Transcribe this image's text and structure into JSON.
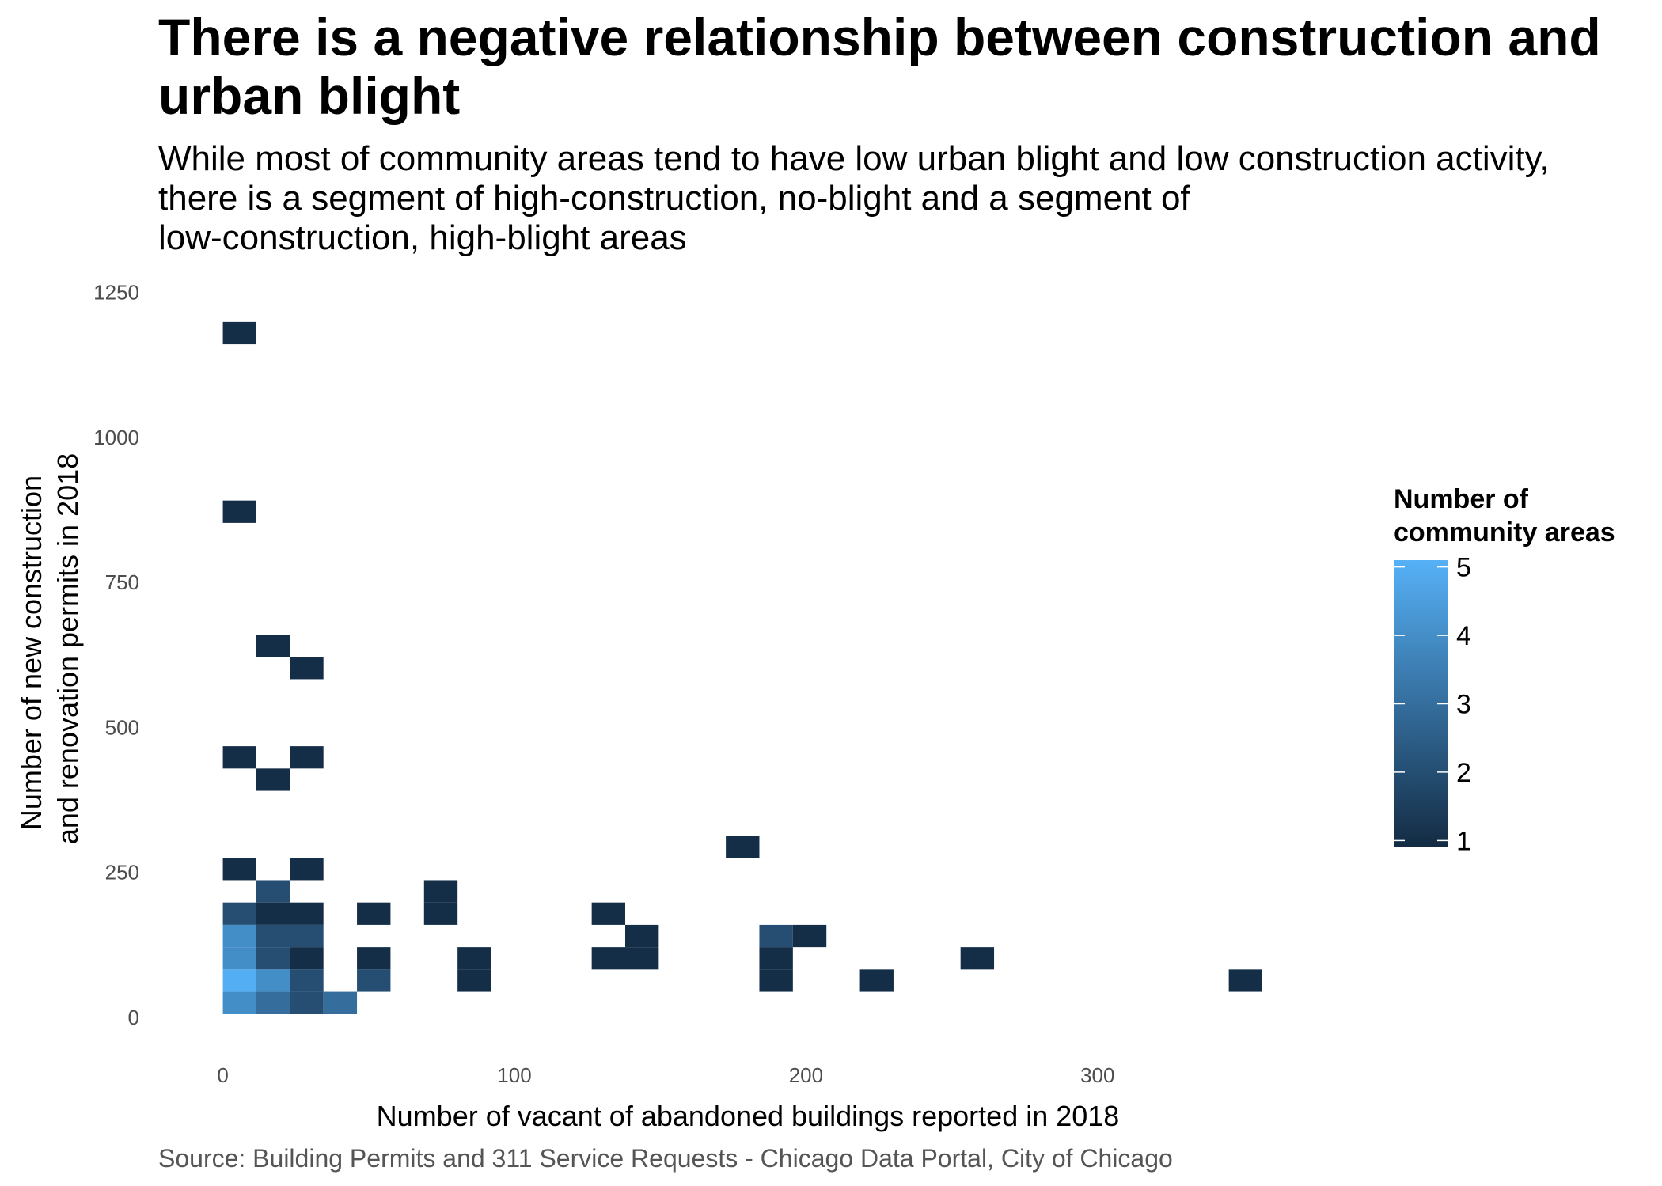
{
  "title": "There is a negative relationship between construction and urban blight",
  "subtitle": "While most of community areas tend to have low urban blight and low construction activity,\nthere is a segment of high-construction, no-blight and a segment of\nlow-construction, high-blight areas",
  "caption": "Source: Building Permits and 311 Service Requests - Chicago Data Portal, City of Chicago",
  "chart_data": {
    "type": "heatmap",
    "xlabel": "Number of vacant of abandoned buildings reported in 2018",
    "ylabel_lines": [
      "Number of new construction",
      "and renovation permits in 2018"
    ],
    "x_ticks": [
      0,
      100,
      200,
      300
    ],
    "y_ticks": [
      0,
      250,
      500,
      750,
      1000,
      1250
    ],
    "xlim": [
      -14,
      385
    ],
    "ylim": [
      -60,
      1270
    ],
    "bin_width": 11.5,
    "bin_height": 38.5,
    "grid": false,
    "legend": {
      "title_lines": [
        "Number of",
        "community areas"
      ],
      "ticks": [
        1,
        2,
        3,
        4,
        5
      ],
      "min": 0.9,
      "max": 5.1,
      "color_low": "#132B43",
      "color_high": "#56B1F7",
      "position": "right"
    },
    "bins": [
      {
        "x": 5.75,
        "y": 1180,
        "count": 1
      },
      {
        "x": 5.75,
        "y": 872,
        "count": 1
      },
      {
        "x": 17.25,
        "y": 641,
        "count": 1
      },
      {
        "x": 28.75,
        "y": 602.5,
        "count": 1
      },
      {
        "x": 5.75,
        "y": 448.5,
        "count": 1
      },
      {
        "x": 28.75,
        "y": 448.5,
        "count": 1
      },
      {
        "x": 17.25,
        "y": 410,
        "count": 1
      },
      {
        "x": 5.75,
        "y": 256,
        "count": 1
      },
      {
        "x": 28.75,
        "y": 256,
        "count": 1
      },
      {
        "x": 178.25,
        "y": 294.5,
        "count": 1
      },
      {
        "x": 17.25,
        "y": 217.5,
        "count": 2
      },
      {
        "x": 5.75,
        "y": 179,
        "count": 2
      },
      {
        "x": 17.25,
        "y": 179,
        "count": 1
      },
      {
        "x": 28.75,
        "y": 179,
        "count": 1
      },
      {
        "x": 51.75,
        "y": 179,
        "count": 1
      },
      {
        "x": 74.75,
        "y": 179,
        "count": 1
      },
      {
        "x": 74.75,
        "y": 217.5,
        "count": 1
      },
      {
        "x": 132.25,
        "y": 179,
        "count": 1
      },
      {
        "x": 5.75,
        "y": 140.5,
        "count": 4
      },
      {
        "x": 17.25,
        "y": 140.5,
        "count": 2
      },
      {
        "x": 28.75,
        "y": 140.5,
        "count": 2
      },
      {
        "x": 143.75,
        "y": 140.5,
        "count": 1
      },
      {
        "x": 189.75,
        "y": 140.5,
        "count": 2
      },
      {
        "x": 201.25,
        "y": 140.5,
        "count": 1
      },
      {
        "x": 5.75,
        "y": 102,
        "count": 4
      },
      {
        "x": 17.25,
        "y": 102,
        "count": 2
      },
      {
        "x": 28.75,
        "y": 102,
        "count": 1
      },
      {
        "x": 51.75,
        "y": 102,
        "count": 1
      },
      {
        "x": 86.25,
        "y": 102,
        "count": 1
      },
      {
        "x": 132.25,
        "y": 102,
        "count": 1
      },
      {
        "x": 143.75,
        "y": 102,
        "count": 1
      },
      {
        "x": 189.75,
        "y": 102,
        "count": 1
      },
      {
        "x": 258.75,
        "y": 102,
        "count": 1
      },
      {
        "x": 5.75,
        "y": 63.5,
        "count": 5
      },
      {
        "x": 17.25,
        "y": 63.5,
        "count": 4
      },
      {
        "x": 28.75,
        "y": 63.5,
        "count": 2
      },
      {
        "x": 51.75,
        "y": 63.5,
        "count": 2
      },
      {
        "x": 86.25,
        "y": 63.5,
        "count": 1
      },
      {
        "x": 189.75,
        "y": 63.5,
        "count": 1
      },
      {
        "x": 224.25,
        "y": 63.5,
        "count": 1
      },
      {
        "x": 350.75,
        "y": 63.5,
        "count": 1
      },
      {
        "x": 5.75,
        "y": 25,
        "count": 4
      },
      {
        "x": 17.25,
        "y": 25,
        "count": 3
      },
      {
        "x": 28.75,
        "y": 25,
        "count": 2
      },
      {
        "x": 40.25,
        "y": 25,
        "count": 3
      }
    ]
  }
}
